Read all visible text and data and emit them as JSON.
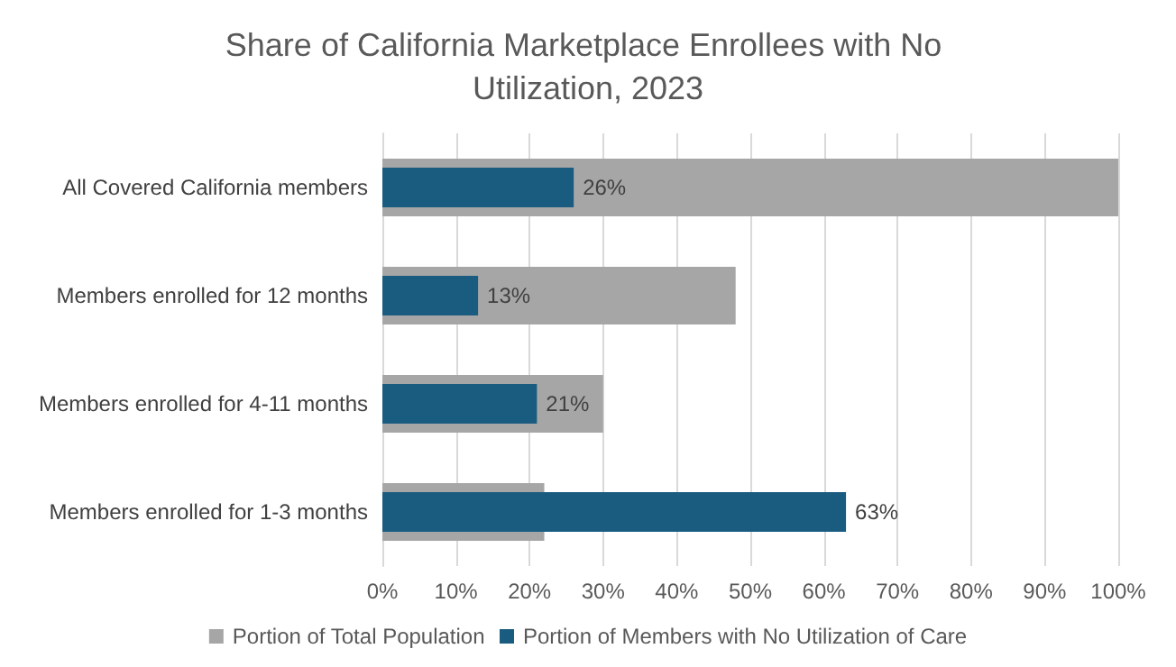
{
  "chart_data": {
    "type": "bar",
    "orientation": "horizontal",
    "title": "Share of California Marketplace Enrollees with No Utilization, 2023",
    "categories": [
      "All Covered California members",
      "Members enrolled for 12 months",
      "Members enrolled for 4-11 months",
      "Members enrolled for 1-3 months"
    ],
    "series": [
      {
        "name": "Portion of Total Population",
        "color": "#a6a6a6",
        "values": [
          100,
          48,
          30,
          22
        ]
      },
      {
        "name": "Portion of Members with No Utilization of Care",
        "color": "#1a5c80",
        "values": [
          26,
          13,
          21,
          63
        ],
        "value_labels": [
          "26%",
          "13%",
          "21%",
          "63%"
        ]
      }
    ],
    "xlim": [
      0,
      100
    ],
    "xticks": [
      {
        "value": 0,
        "label": "0%"
      },
      {
        "value": 10,
        "label": "10%"
      },
      {
        "value": 20,
        "label": "20%"
      },
      {
        "value": 30,
        "label": "30%"
      },
      {
        "value": 40,
        "label": "40%"
      },
      {
        "value": 50,
        "label": "50%"
      },
      {
        "value": 60,
        "label": "60%"
      },
      {
        "value": 70,
        "label": "70%"
      },
      {
        "value": 80,
        "label": "80%"
      },
      {
        "value": 90,
        "label": "90%"
      },
      {
        "value": 100,
        "label": "100%"
      }
    ],
    "grid": "x",
    "legend": "bottom"
  }
}
